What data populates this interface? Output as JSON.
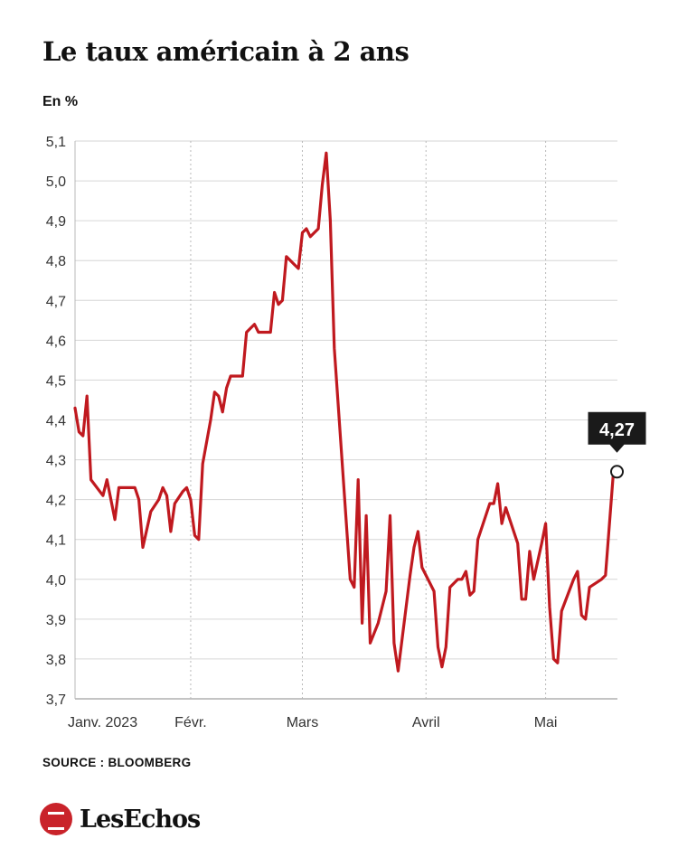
{
  "header": {
    "title": "Le taux américain à 2 ans",
    "unit": "En %"
  },
  "footer": {
    "source": "SOURCE : BLOOMBERG",
    "brand": "LesEchos"
  },
  "colors": {
    "line": "#c0191f",
    "grid": "#d6d6d6",
    "axis": "#888888",
    "callout_bg": "#1a1a1a",
    "callout_text": "#ffffff"
  },
  "chart_data": {
    "type": "line",
    "title": "Le taux américain à 2 ans",
    "ylabel": "En %",
    "xlabel": "",
    "ylim": [
      3.7,
      5.1
    ],
    "yticks": [
      3.7,
      3.8,
      3.9,
      4.0,
      4.1,
      4.2,
      4.3,
      4.4,
      4.5,
      4.6,
      4.7,
      4.8,
      4.9,
      5.0,
      5.1
    ],
    "ytick_labels": [
      "3,7",
      "3,8",
      "3,9",
      "4,0",
      "4,1",
      "4,2",
      "4,3",
      "4,4",
      "4,5",
      "4,6",
      "4,7",
      "4,8",
      "4,9",
      "5,0",
      "5,1"
    ],
    "xlim": [
      "2023-01-03",
      "2023-05-19"
    ],
    "xticks": [
      {
        "date": "2023-01-03",
        "label": "Janv. 2023"
      },
      {
        "date": "2023-02-01",
        "label": "Févr."
      },
      {
        "date": "2023-03-01",
        "label": "Mars"
      },
      {
        "date": "2023-04-01",
        "label": "Avril"
      },
      {
        "date": "2023-05-01",
        "label": "Mai"
      }
    ],
    "grid": true,
    "annotation": {
      "date": "2023-05-19",
      "value": 4.27,
      "label": "4,27"
    },
    "series": [
      {
        "points": [
          [
            "2023-01-03",
            4.43
          ],
          [
            "2023-01-04",
            4.37
          ],
          [
            "2023-01-05",
            4.36
          ],
          [
            "2023-01-06",
            4.46
          ],
          [
            "2023-01-07",
            4.25
          ],
          [
            "2023-01-10",
            4.21
          ],
          [
            "2023-01-11",
            4.25
          ],
          [
            "2023-01-13",
            4.15
          ],
          [
            "2023-01-14",
            4.23
          ],
          [
            "2023-01-17",
            4.23
          ],
          [
            "2023-01-18",
            4.23
          ],
          [
            "2023-01-19",
            4.2
          ],
          [
            "2023-01-20",
            4.08
          ],
          [
            "2023-01-22",
            4.17
          ],
          [
            "2023-01-24",
            4.2
          ],
          [
            "2023-01-25",
            4.23
          ],
          [
            "2023-01-26",
            4.21
          ],
          [
            "2023-01-27",
            4.12
          ],
          [
            "2023-01-28",
            4.19
          ],
          [
            "2023-01-30",
            4.22
          ],
          [
            "2023-01-31",
            4.23
          ],
          [
            "2023-02-01",
            4.2
          ],
          [
            "2023-02-02",
            4.11
          ],
          [
            "2023-02-03",
            4.1
          ],
          [
            "2023-02-04",
            4.29
          ],
          [
            "2023-02-06",
            4.4
          ],
          [
            "2023-02-07",
            4.47
          ],
          [
            "2023-02-08",
            4.46
          ],
          [
            "2023-02-09",
            4.42
          ],
          [
            "2023-02-10",
            4.48
          ],
          [
            "2023-02-11",
            4.51
          ],
          [
            "2023-02-13",
            4.51
          ],
          [
            "2023-02-14",
            4.51
          ],
          [
            "2023-02-15",
            4.62
          ],
          [
            "2023-02-16",
            4.63
          ],
          [
            "2023-02-17",
            4.64
          ],
          [
            "2023-02-18",
            4.62
          ],
          [
            "2023-02-20",
            4.62
          ],
          [
            "2023-02-21",
            4.62
          ],
          [
            "2023-02-22",
            4.72
          ],
          [
            "2023-02-23",
            4.69
          ],
          [
            "2023-02-24",
            4.7
          ],
          [
            "2023-02-25",
            4.81
          ],
          [
            "2023-02-27",
            4.79
          ],
          [
            "2023-02-28",
            4.78
          ],
          [
            "2023-03-01",
            4.87
          ],
          [
            "2023-03-02",
            4.88
          ],
          [
            "2023-03-03",
            4.86
          ],
          [
            "2023-03-05",
            4.88
          ],
          [
            "2023-03-06",
            4.99
          ],
          [
            "2023-03-07",
            5.07
          ],
          [
            "2023-03-08",
            4.9
          ],
          [
            "2023-03-09",
            4.58
          ],
          [
            "2023-03-13",
            4.0
          ],
          [
            "2023-03-14",
            3.98
          ],
          [
            "2023-03-15",
            4.25
          ],
          [
            "2023-03-16",
            3.89
          ],
          [
            "2023-03-17",
            4.16
          ],
          [
            "2023-03-18",
            3.84
          ],
          [
            "2023-03-20",
            3.89
          ],
          [
            "2023-03-22",
            3.97
          ],
          [
            "2023-03-23",
            4.16
          ],
          [
            "2023-03-24",
            3.84
          ],
          [
            "2023-03-25",
            3.77
          ],
          [
            "2023-03-28",
            4.01
          ],
          [
            "2023-03-29",
            4.08
          ],
          [
            "2023-03-30",
            4.12
          ],
          [
            "2023-03-31",
            4.03
          ],
          [
            "2023-04-03",
            3.97
          ],
          [
            "2023-04-04",
            3.83
          ],
          [
            "2023-04-05",
            3.78
          ],
          [
            "2023-04-06",
            3.83
          ],
          [
            "2023-04-07",
            3.98
          ],
          [
            "2023-04-09",
            4.0
          ],
          [
            "2023-04-10",
            4.0
          ],
          [
            "2023-04-11",
            4.02
          ],
          [
            "2023-04-12",
            3.96
          ],
          [
            "2023-04-13",
            3.97
          ],
          [
            "2023-04-14",
            4.1
          ],
          [
            "2023-04-17",
            4.19
          ],
          [
            "2023-04-18",
            4.19
          ],
          [
            "2023-04-19",
            4.24
          ],
          [
            "2023-04-20",
            4.14
          ],
          [
            "2023-04-21",
            4.18
          ],
          [
            "2023-04-24",
            4.09
          ],
          [
            "2023-04-25",
            3.95
          ],
          [
            "2023-04-26",
            3.95
          ],
          [
            "2023-04-27",
            4.07
          ],
          [
            "2023-04-28",
            4.0
          ],
          [
            "2023-04-30",
            4.09
          ],
          [
            "2023-05-01",
            4.14
          ],
          [
            "2023-05-02",
            3.93
          ],
          [
            "2023-05-03",
            3.8
          ],
          [
            "2023-05-04",
            3.79
          ],
          [
            "2023-05-05",
            3.92
          ],
          [
            "2023-05-08",
            4.0
          ],
          [
            "2023-05-09",
            4.02
          ],
          [
            "2023-05-10",
            3.91
          ],
          [
            "2023-05-11",
            3.9
          ],
          [
            "2023-05-12",
            3.98
          ],
          [
            "2023-05-15",
            4.0
          ],
          [
            "2023-05-16",
            4.01
          ],
          [
            "2023-05-18",
            4.27
          ]
        ]
      }
    ]
  }
}
